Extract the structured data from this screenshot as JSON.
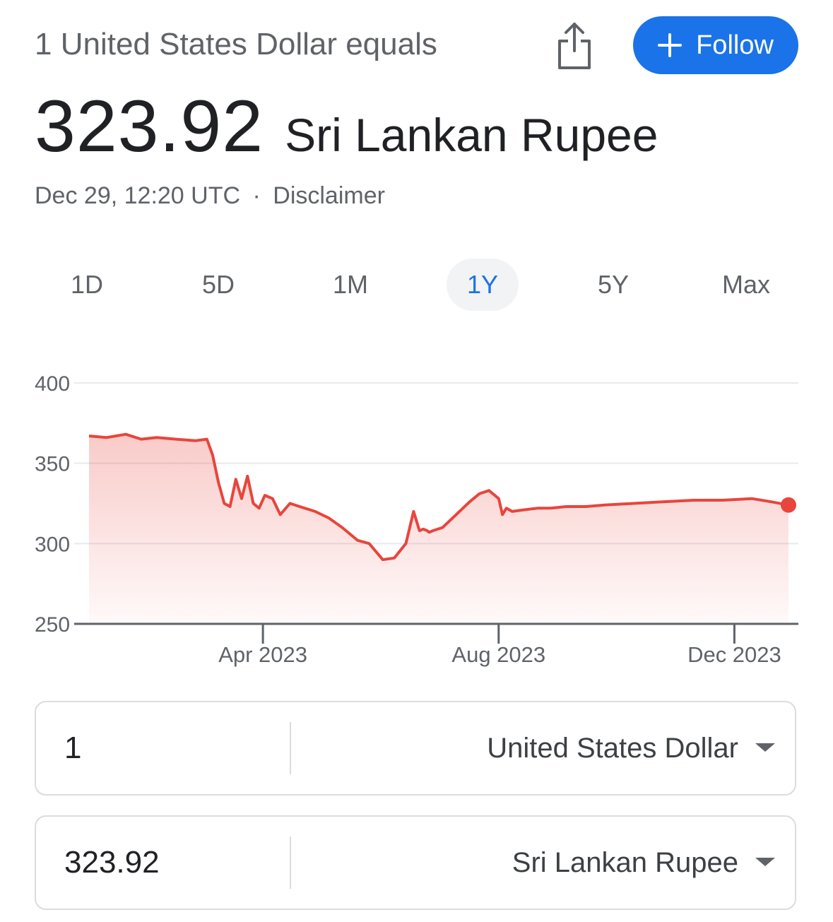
{
  "header": {
    "subtitle": "1 United States Dollar equals",
    "follow_label": "Follow",
    "share_icon": "share-icon"
  },
  "rate": {
    "value": "323.92",
    "unit": "Sri Lankan Rupee"
  },
  "meta": {
    "timestamp": "Dec 29, 12:20 UTC",
    "separator": "·",
    "disclaimer": "Disclaimer"
  },
  "ranges": [
    "1D",
    "5D",
    "1M",
    "1Y",
    "5Y",
    "Max"
  ],
  "active_range": "1Y",
  "colors": {
    "accent": "#1a73e8",
    "line": "#e8453c",
    "grid": "#e8eaed"
  },
  "chart_data": {
    "type": "area",
    "title": "",
    "xlabel": "",
    "ylabel": "",
    "ylim": [
      250,
      400
    ],
    "yticks": [
      "400",
      "350",
      "300",
      "250"
    ],
    "xticks": [
      {
        "label": "Apr 2023",
        "x": "2023-04-01"
      },
      {
        "label": "Aug 2023",
        "x": "2023-08-01"
      },
      {
        "label": "Dec 2023",
        "x": "2023-12-01"
      }
    ],
    "xlim": [
      "2023-01-01",
      "2023-12-29"
    ],
    "grid": true,
    "x": [
      "2023-01-01",
      "2023-01-10",
      "2023-01-20",
      "2023-01-28",
      "2023-02-05",
      "2023-02-15",
      "2023-02-25",
      "2023-03-03",
      "2023-03-06",
      "2023-03-09",
      "2023-03-12",
      "2023-03-15",
      "2023-03-18",
      "2023-03-21",
      "2023-03-24",
      "2023-03-27",
      "2023-03-30",
      "2023-04-02",
      "2023-04-06",
      "2023-04-10",
      "2023-04-15",
      "2023-04-20",
      "2023-04-28",
      "2023-05-05",
      "2023-05-12",
      "2023-05-20",
      "2023-05-26",
      "2023-06-02",
      "2023-06-08",
      "2023-06-14",
      "2023-06-18",
      "2023-06-21",
      "2023-06-23",
      "2023-06-25",
      "2023-06-26",
      "2023-06-28",
      "2023-07-03",
      "2023-07-10",
      "2023-07-17",
      "2023-07-22",
      "2023-07-27",
      "2023-08-01",
      "2023-08-03",
      "2023-08-05",
      "2023-08-08",
      "2023-08-14",
      "2023-08-21",
      "2023-08-28",
      "2023-09-05",
      "2023-09-15",
      "2023-09-25",
      "2023-10-10",
      "2023-10-25",
      "2023-11-10",
      "2023-11-25",
      "2023-12-10",
      "2023-12-20",
      "2023-12-29"
    ],
    "series": [
      {
        "values": [
          367,
          366,
          368,
          365,
          366,
          365,
          364,
          365,
          355,
          338,
          325,
          323,
          340,
          328,
          342,
          325,
          322,
          330,
          328,
          318,
          325,
          323,
          320,
          316,
          310,
          302,
          300,
          290,
          291,
          300,
          320,
          308,
          309,
          308,
          307,
          308,
          310,
          318,
          326,
          331,
          333,
          328,
          318,
          322,
          320,
          321,
          322,
          322,
          323,
          323,
          324,
          325,
          326,
          327,
          327,
          328,
          326,
          324
        ]
      }
    ]
  },
  "converter": {
    "from_amount": "1",
    "from_currency": "United States Dollar",
    "to_amount": "323.92",
    "to_currency": "Sri Lankan Rupee"
  }
}
